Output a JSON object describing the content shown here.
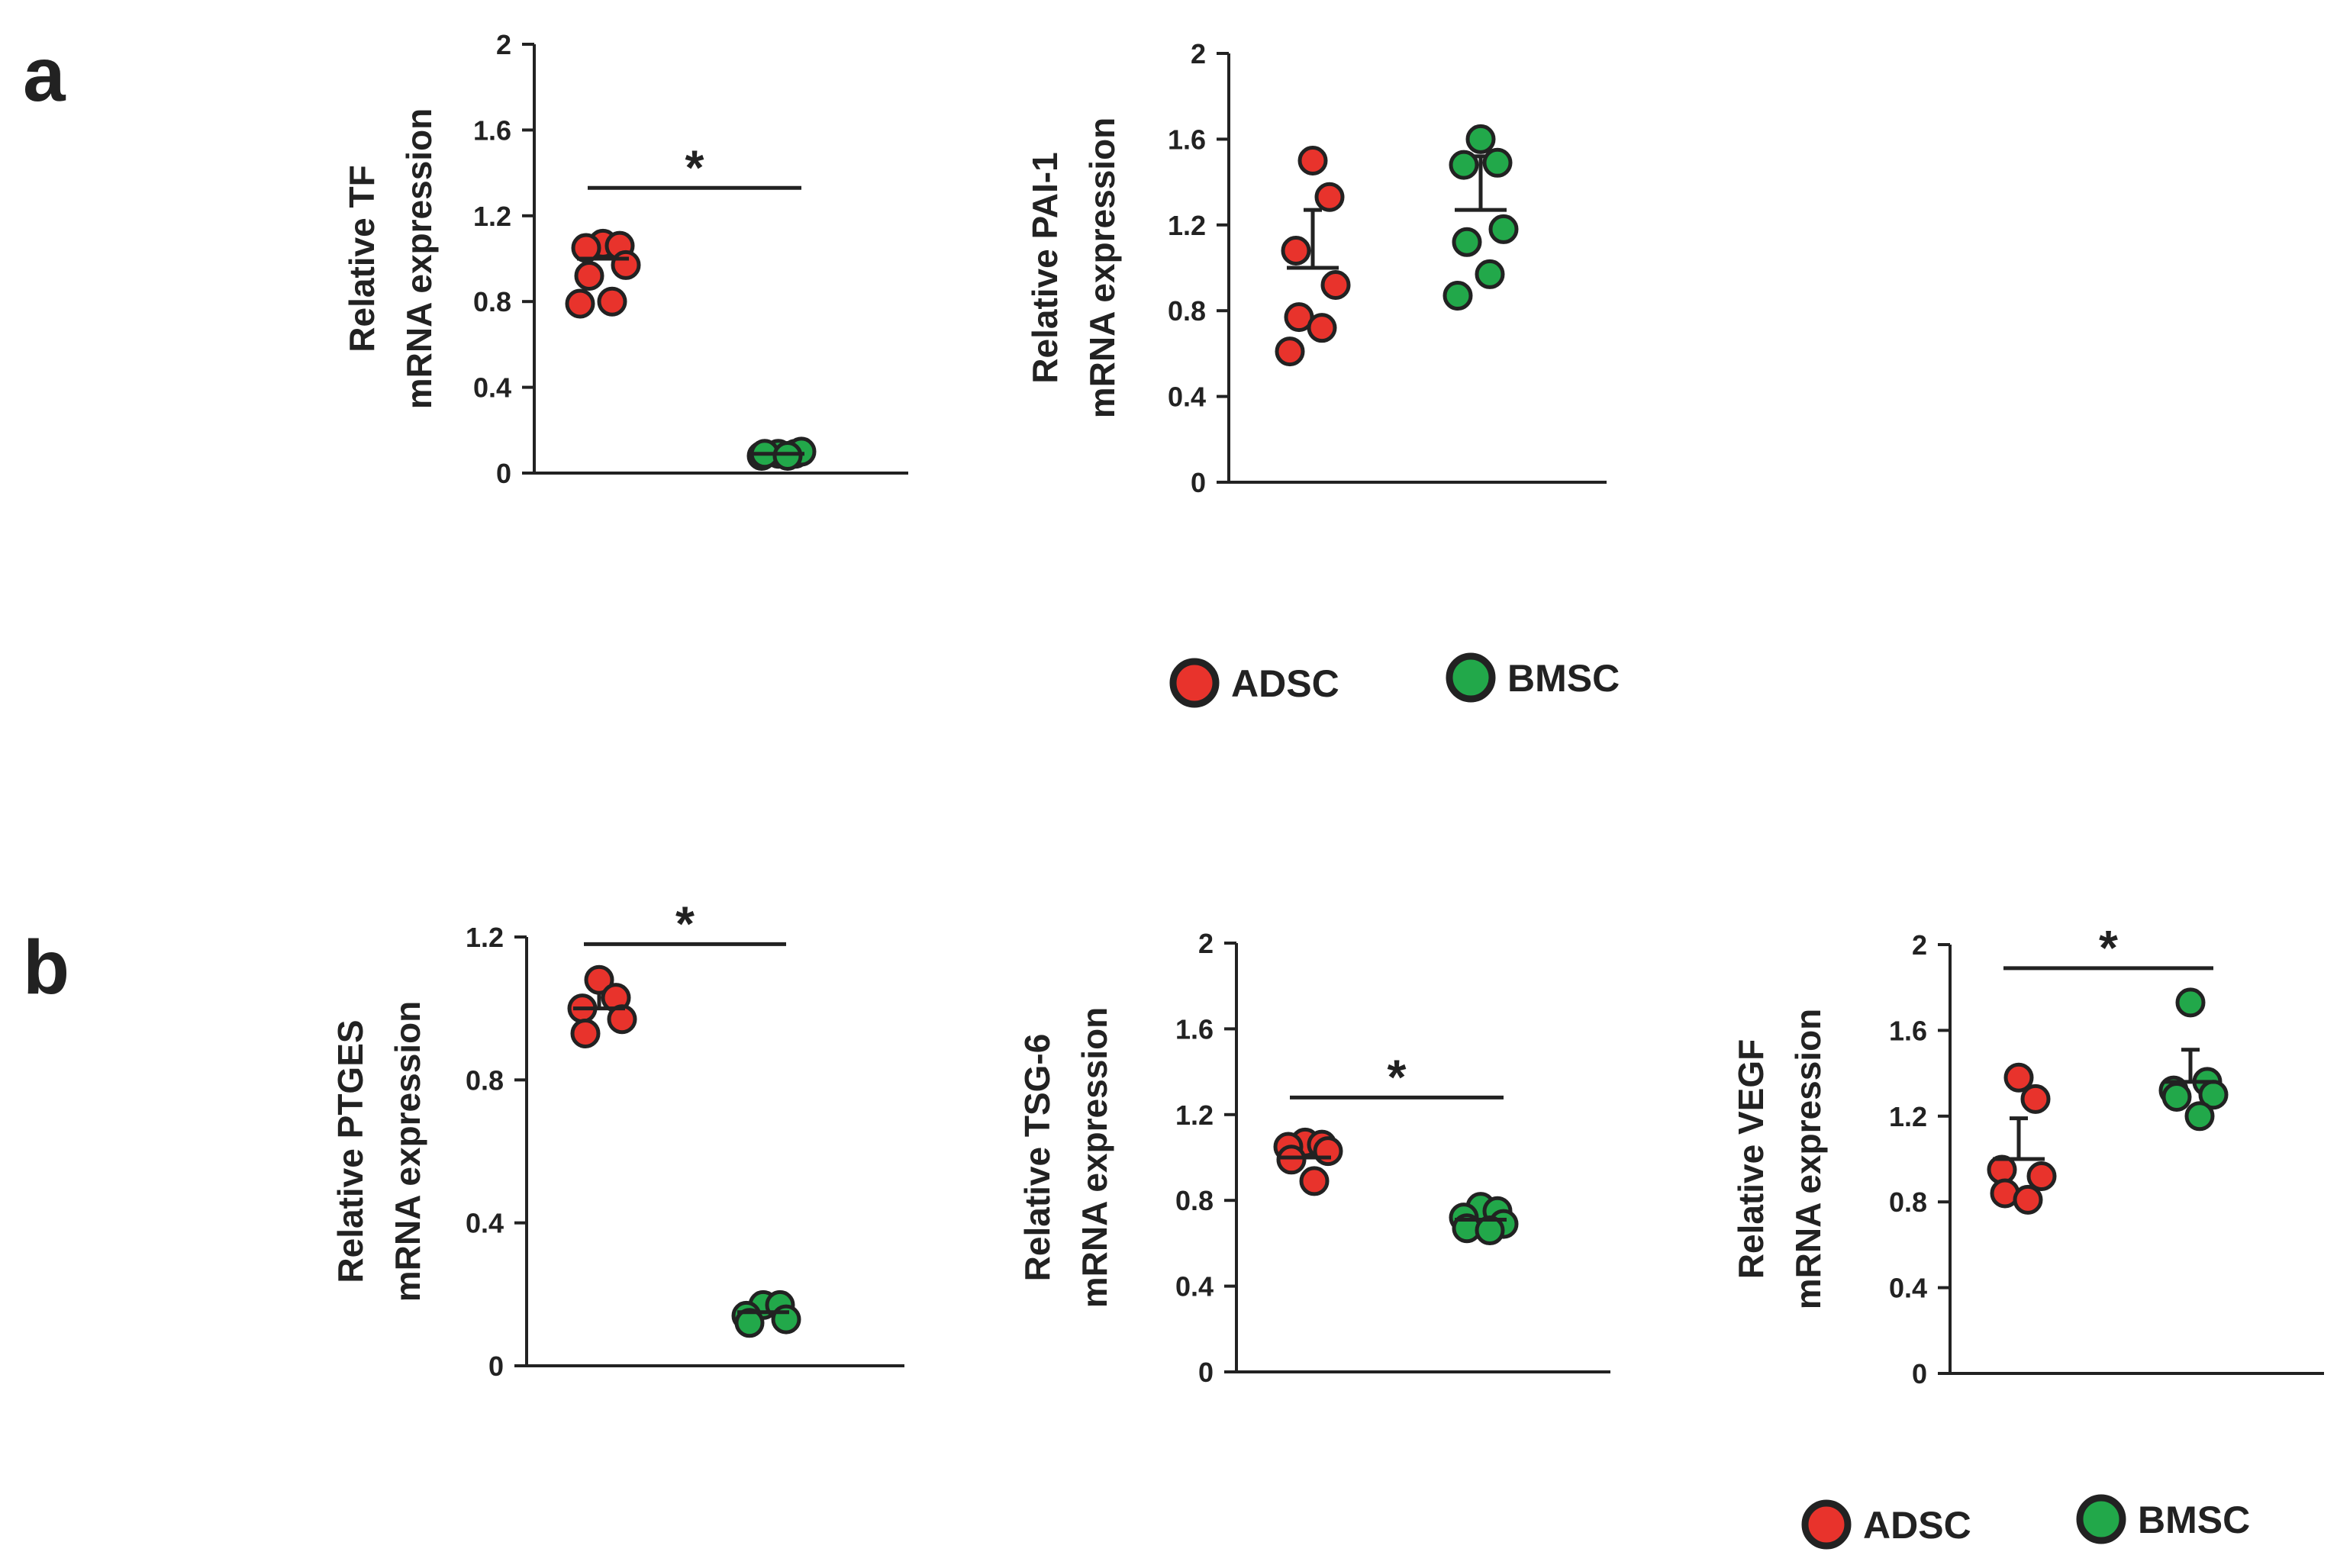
{
  "panels": [
    {
      "letter": "a"
    },
    {
      "letter": "b"
    }
  ],
  "colors": {
    "ADSC": "#e8332c",
    "ADSC_light": "#f2a07a",
    "BMSC": "#22a84a",
    "stroke": "#222222"
  },
  "legends": [
    {
      "panel": "a",
      "items": [
        {
          "label": "ADSC",
          "group": "ADSC"
        },
        {
          "label": "BMSC",
          "group": "BMSC"
        }
      ]
    },
    {
      "panel": "b",
      "items": [
        {
          "label": "ADSC",
          "group": "ADSC"
        },
        {
          "label": "BMSC",
          "group": "BMSC"
        }
      ]
    }
  ],
  "chart_data": [
    {
      "id": "tf",
      "panel": "a",
      "type": "scatter",
      "ylabel": [
        "Relative  TF",
        "mRNA expression"
      ],
      "ylim": [
        0,
        2
      ],
      "yticks": [
        "0",
        "0.4",
        "0.8",
        "1.2",
        "1.6",
        "2"
      ],
      "series": [
        {
          "name": "ADSC",
          "mean": 1.0,
          "sd": 0.1,
          "values": [
            1.07,
            1.06,
            1.05,
            0.97,
            0.92,
            0.8,
            0.79
          ]
        },
        {
          "name": "BMSC",
          "mean": 0.09,
          "sd": 0.01,
          "values": [
            0.09,
            0.09,
            0.08,
            0.1,
            0.09,
            0.08
          ]
        }
      ],
      "significance": {
        "label": "*",
        "y": 1.33
      }
    },
    {
      "id": "pai1",
      "panel": "a",
      "type": "scatter",
      "ylabel": [
        "Relative  PAI-1",
        "mRNA expression"
      ],
      "ylim": [
        0,
        2
      ],
      "yticks": [
        "0",
        "0.4",
        "0.8",
        "1.2",
        "1.6",
        "2"
      ],
      "series": [
        {
          "name": "ADSC",
          "mean": 1.0,
          "sd": 0.27,
          "values": [
            1.5,
            1.33,
            1.08,
            0.92,
            0.77,
            0.72,
            0.61
          ]
        },
        {
          "name": "BMSC",
          "mean": 1.27,
          "sd": 0.25,
          "values": [
            1.6,
            1.49,
            1.48,
            1.18,
            1.12,
            0.97,
            0.87
          ]
        }
      ],
      "significance": null
    },
    {
      "id": "ptges",
      "panel": "b",
      "type": "scatter",
      "ylabel": [
        "Relative PTGES",
        "mRNA expression"
      ],
      "ylim": [
        0,
        1.2
      ],
      "yticks": [
        "0",
        "0.4",
        "0.8",
        "1.2"
      ],
      "series": [
        {
          "name": "ADSC",
          "mean": 1.0,
          "sd": 0.06,
          "values": [
            1.08,
            1.03,
            1.0,
            0.97,
            0.93
          ]
        },
        {
          "name": "BMSC",
          "mean": 0.15,
          "sd": 0.02,
          "values": [
            0.17,
            0.17,
            0.14,
            0.13,
            0.12
          ]
        }
      ],
      "significance": {
        "label": "*",
        "y": 1.18
      }
    },
    {
      "id": "tsg6",
      "panel": "b",
      "type": "scatter",
      "ylabel": [
        "Relative  TSG-6",
        "mRNA expression"
      ],
      "ylim": [
        0,
        2
      ],
      "yticks": [
        "0",
        "0.4",
        "0.8",
        "1.2",
        "1.6",
        "2"
      ],
      "series": [
        {
          "name": "ADSC",
          "mean": 1.0,
          "sd": 0.07,
          "values": [
            1.07,
            1.06,
            1.05,
            1.03,
            0.99,
            0.89
          ]
        },
        {
          "name": "BMSC",
          "mean": 0.71,
          "sd": 0.04,
          "values": [
            0.77,
            0.75,
            0.72,
            0.69,
            0.67,
            0.66
          ]
        }
      ],
      "significance": {
        "label": "*",
        "y": 1.28
      }
    },
    {
      "id": "vegf",
      "panel": "b",
      "type": "scatter",
      "ylabel": [
        "Relative VEGF",
        "mRNA expression"
      ],
      "ylim": [
        0,
        2
      ],
      "yticks": [
        "0",
        "0.4",
        "0.8",
        "1.2",
        "1.6",
        "2"
      ],
      "series": [
        {
          "name": "ADSC",
          "mean": 1.0,
          "sd": 0.19,
          "values": [
            1.38,
            1.28,
            0.95,
            0.92,
            0.84,
            0.81
          ]
        },
        {
          "name": "BMSC",
          "mean": 1.36,
          "sd": 0.15,
          "values": [
            1.73,
            1.36,
            1.32,
            1.3,
            1.29,
            1.2
          ]
        }
      ],
      "significance": {
        "label": "*",
        "y": 1.89
      }
    }
  ]
}
